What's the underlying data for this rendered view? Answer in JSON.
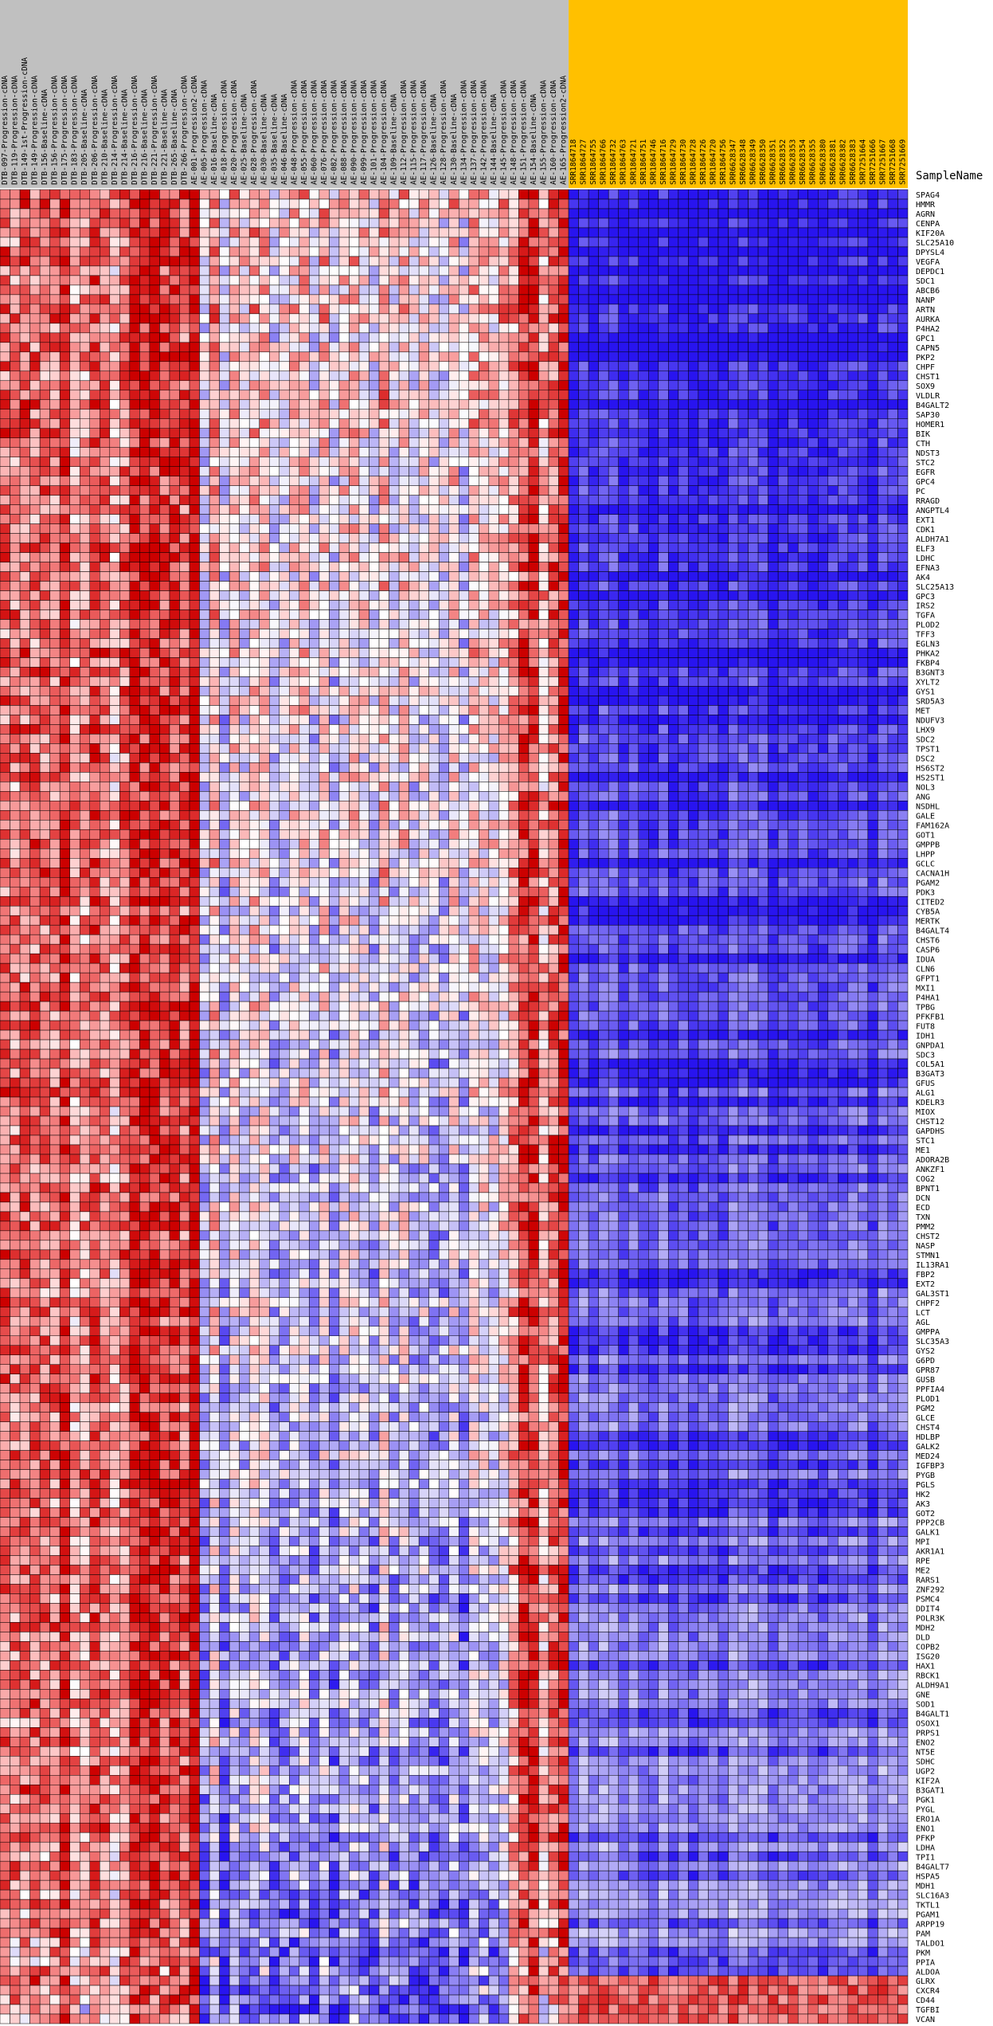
{
  "chart_data": {
    "type": "heatmap",
    "row_header": "SampleName",
    "colors": {
      "group_a_header": "#c0c0c0",
      "group_b_header": "#ffc000",
      "high": "#cc0000",
      "mid": "#ffffff",
      "low": "#0000cc",
      "grid": "#000000"
    },
    "value_scale": [
      -3,
      3
    ],
    "columns": [
      "DTB-097-Progression-cDNA",
      "DTB-119-Progression-cDNA",
      "DTB-149-1st-Progression-cDNA",
      "DTB-149-Progression-cDNA",
      "DTB-156-Baseline-cDNA",
      "DTB-156-Progression-cDNA",
      "DTB-175-Progression-cDNA",
      "DTB-183-Progression-cDNA",
      "DTB-205-Baseline-cDNA",
      "DTB-206-Progression-cDNA",
      "DTB-210-Baseline-cDNA",
      "DTB-214-Progression-cDNA",
      "DTB-214-Baseline-cDNA",
      "DTB-216-Progression-cDNA",
      "DTB-216-Baseline-cDNA",
      "DTB-221-Progression-cDNA",
      "DTB-221-Baseline-cDNA",
      "DTB-265-Baseline-cDNA",
      "DTB-266-Progression-cDNA",
      "AE-001-Progression2-cDNA",
      "AE-005-Progression-cDNA",
      "AE-016-Baseline-cDNA",
      "AE-018-Progression-cDNA",
      "AE-020-Progression-cDNA",
      "AE-025-Baseline-cDNA",
      "AE-028-Progression-cDNA",
      "AE-030-Baseline-cDNA",
      "AE-035-Baseline-cDNA",
      "AE-046-Baseline-cDNA",
      "AE-048-Progression-cDNA",
      "AE-055-Progression-cDNA",
      "AE-060-Progression-cDNA",
      "AE-076-Progression-cDNA",
      "AE-082-Progression-cDNA",
      "AE-088-Progression-cDNA",
      "AE-090-Progression-cDNA",
      "AE-099-Progression-cDNA",
      "AE-101-Progression-cDNA",
      "AE-104-Progression-cDNA",
      "AE-109-Baseline-cDNA",
      "AE-112-Progression-cDNA",
      "AE-115-Progression-cDNA",
      "AE-117-Progression-cDNA",
      "AE-126-Baseline-cDNA",
      "AE-128-Progression-cDNA",
      "AE-130-Baseline-cDNA",
      "AE-134-Progression-cDNA",
      "AE-137-Progression-cDNA",
      "AE-142-Progression-cDNA",
      "AE-144-Baseline-cDNA",
      "AE-145-Progression-cDNA",
      "AE-148-Progression-cDNA",
      "AE-151-Progression-cDNA",
      "AE-154-Baseline-cDNA",
      "AE-155-Progression-cDNA",
      "AE-160-Progression-cDNA",
      "AE-165-Progression2-cDNA",
      "SRR1864718",
      "SRR1864727",
      "SRR1864755",
      "SRR1864766",
      "SRR1864732",
      "SRR1864763",
      "SRR1864721",
      "SRR1864751",
      "SRR1864746",
      "SRR1864716",
      "SRR1864729",
      "SRR1864730",
      "SRR1864728",
      "SRR1864726",
      "SRR1864720",
      "SRR1864756",
      "SRR6628347",
      "SRR6628348",
      "SRR6628349",
      "SRR6628350",
      "SRR6628351",
      "SRR6628352",
      "SRR6628353",
      "SRR6628354",
      "SRR6628355",
      "SRR6628380",
      "SRR6628381",
      "SRR6628382",
      "SRR6628383",
      "SRR7251664",
      "SRR7251666",
      "SRR7251667",
      "SRR7251668",
      "SRR7251669"
    ],
    "group_a_count": 57,
    "rows": [
      "SPAG4",
      "HMMR",
      "AGRN",
      "CENPA",
      "KIF20A",
      "SLC25A10",
      "DPYSL4",
      "VEGFA",
      "DEPDC1",
      "SDC1",
      "ABCB6",
      "NANP",
      "ARTN",
      "AURKA",
      "P4HA2",
      "GPC1",
      "CAPN5",
      "PKP2",
      "CHPF",
      "CHST1",
      "SOX9",
      "VLDLR",
      "B4GALT2",
      "SAP30",
      "HOMER1",
      "BIK",
      "CTH",
      "NDST3",
      "STC2",
      "EGFR",
      "GPC4",
      "PC",
      "RRAGD",
      "ANGPTL4",
      "EXT1",
      "CDK1",
      "ALDH7A1",
      "ELF3",
      "LDHC",
      "EFNA3",
      "AK4",
      "SLC25A13",
      "GPC3",
      "IRS2",
      "TGFA",
      "PLOD2",
      "TFF3",
      "EGLN3",
      "PHKA2",
      "FKBP4",
      "B3GNT3",
      "XYLT2",
      "GYS1",
      "SRD5A3",
      "MET",
      "NDUFV3",
      "LHX9",
      "SDC2",
      "TPST1",
      "DSC2",
      "HS6ST2",
      "HS2ST1",
      "NOL3",
      "ANG",
      "NSDHL",
      "GALE",
      "FAM162A",
      "GOT1",
      "GMPPB",
      "LHPP",
      "GCLC",
      "CACNA1H",
      "PGAM2",
      "PDK3",
      "CITED2",
      "CYB5A",
      "MERTK",
      "B4GALT4",
      "CHST6",
      "CASP6",
      "IDUA",
      "CLN6",
      "GFPT1",
      "MXI1",
      "P4HA1",
      "TPBG",
      "PFKFB1",
      "FUT8",
      "IDH1",
      "GNPDA1",
      "SDC3",
      "COL5A1",
      "B3GAT3",
      "GFUS",
      "ALG1",
      "KDELR3",
      "MIOX",
      "CHST12",
      "GAPDHS",
      "STC1",
      "ME1",
      "ADORA2B",
      "ANKZF1",
      "COG2",
      "BPNT1",
      "DCN",
      "ECD",
      "TXN",
      "PMM2",
      "CHST2",
      "NASP",
      "STMN1",
      "IL13RA1",
      "FBP2",
      "EXT2",
      "GAL3ST1",
      "CHPF2",
      "LCT",
      "AGL",
      "GMPPA",
      "SLC35A3",
      "GYS2",
      "G6PD",
      "GPR87",
      "GUSB",
      "PPFIA4",
      "PLOD1",
      "PGM2",
      "GLCE",
      "CHST4",
      "HDLBP",
      "GALK2",
      "MED24",
      "IGFBP3",
      "PYGB",
      "PGLS",
      "HK2",
      "AK3",
      "GOT2",
      "PPP2CB",
      "GALK1",
      "MPI",
      "AKR1A1",
      "RPE",
      "ME2",
      "RARS1",
      "ZNF292",
      "PSMC4",
      "DDIT4",
      "POLR3K",
      "MDH2",
      "DLD",
      "COPB2",
      "ISG20",
      "HAX1",
      "RBCK1",
      "ALDH9A1",
      "GNE",
      "SOD1",
      "B4GALT1",
      "OSOX1",
      "PRPS1",
      "ENO2",
      "NT5E",
      "SDHC",
      "UGP2",
      "KIF2A",
      "B3GAT1",
      "PGK1",
      "PYGL",
      "ERO1A",
      "ENO1",
      "PFKP",
      "LDHA",
      "TPI1",
      "B4GALT7",
      "HSPA5",
      "MDH1",
      "SLC16A3",
      "TKTL1",
      "PGAM1",
      "ARPP19",
      "PAM",
      "TALDO1",
      "PKM",
      "PPIA",
      "ALDOA",
      "GLRX",
      "CXCR4",
      "CD44",
      "TGFBI",
      "VCAN"
    ]
  }
}
